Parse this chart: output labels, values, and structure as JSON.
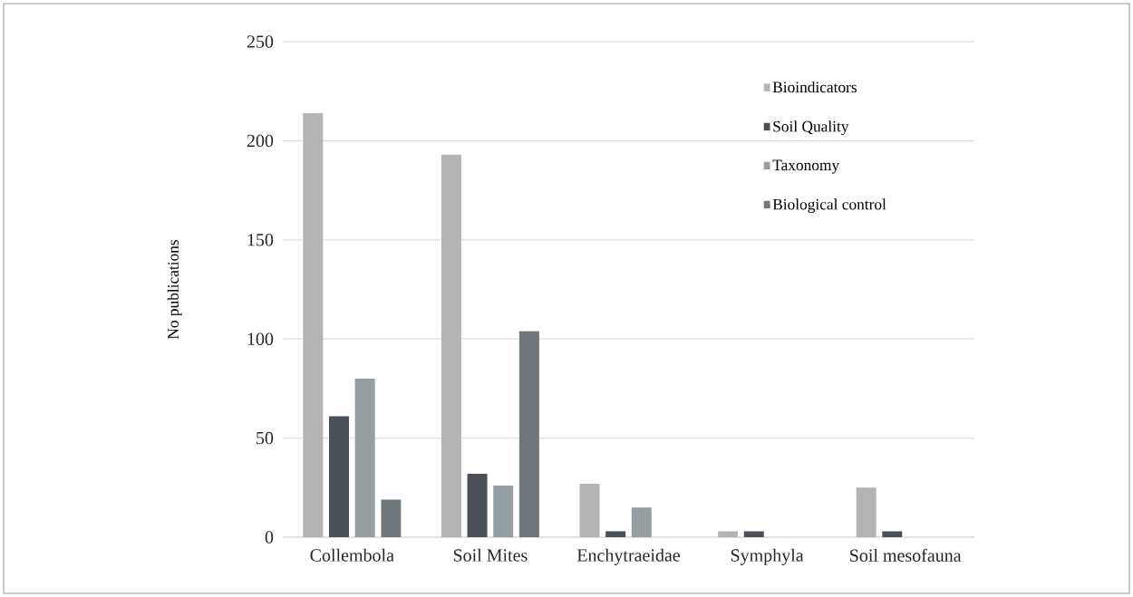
{
  "chart_data": {
    "type": "bar",
    "ylabel": "No publications",
    "categories": [
      "Collembola",
      "Soil Mites",
      "Enchytraeidae",
      "Symphyla",
      "Soil mesofauna"
    ],
    "series": [
      {
        "name": "Bioindicators",
        "color": "#b4b4b4",
        "values": [
          214,
          193,
          27,
          3,
          25
        ]
      },
      {
        "name": "Soil Quality",
        "color": "#4a5055",
        "values": [
          61,
          32,
          3,
          3,
          3
        ]
      },
      {
        "name": "Taxonomy",
        "color": "#959fa2",
        "values": [
          80,
          26,
          15,
          0,
          0
        ]
      },
      {
        "name": "Biological control",
        "color": "#70777b",
        "values": [
          19,
          104,
          0,
          0,
          0
        ]
      }
    ],
    "ylim": [
      0,
      250
    ],
    "yticks": [
      0,
      50,
      100,
      150,
      200,
      250
    ],
    "grid": "y",
    "legend": "top right"
  }
}
